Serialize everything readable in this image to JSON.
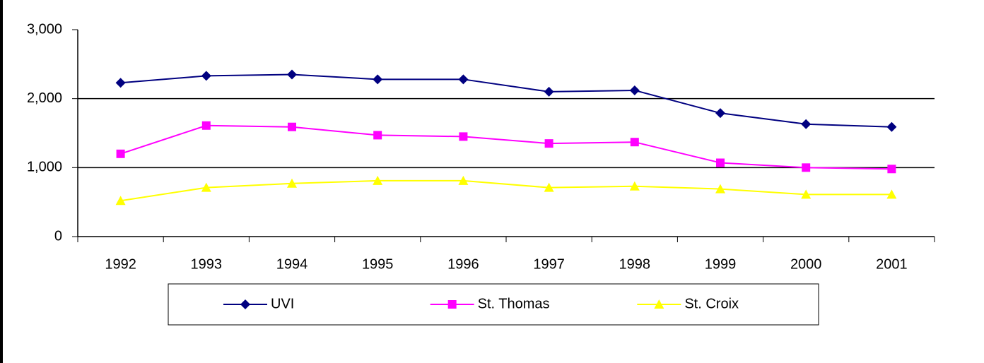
{
  "chart_data": {
    "type": "line",
    "categories": [
      "1992",
      "1993",
      "1994",
      "1995",
      "1996",
      "1997",
      "1998",
      "1999",
      "2000",
      "2001"
    ],
    "series": [
      {
        "name": "UVI",
        "color": "#000080",
        "marker": "diamond",
        "values": [
          2230,
          2330,
          2350,
          2280,
          2280,
          2100,
          2120,
          1790,
          1630,
          1590
        ]
      },
      {
        "name": "St. Thomas",
        "color": "#ff00ff",
        "marker": "square",
        "values": [
          1200,
          1610,
          1590,
          1470,
          1450,
          1350,
          1370,
          1070,
          1000,
          980
        ]
      },
      {
        "name": "St. Croix",
        "color": "#ffff00",
        "marker": "triangle",
        "values": [
          520,
          710,
          770,
          810,
          810,
          710,
          730,
          690,
          610,
          610
        ]
      }
    ],
    "ylim": [
      0,
      3000
    ],
    "yticks": [
      0,
      {
        "value": 1000,
        "label": "1,000"
      },
      {
        "value": 2000,
        "label": "2,000"
      },
      {
        "value": 3000,
        "label": "3,000"
      }
    ],
    "grid": true,
    "legend": "bottom"
  }
}
